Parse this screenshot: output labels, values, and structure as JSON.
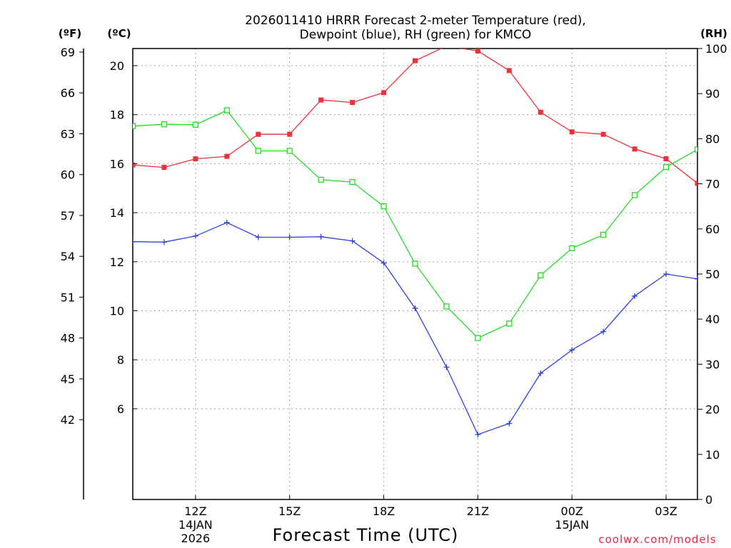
{
  "chart_data": {
    "type": "line",
    "title_line1": "2026011410 HRRR Forecast 2-meter Temperature (red),",
    "title_line2": "Dewpoint (blue), RH (green) for KMCO",
    "xlabel": "Forecast Time (UTC)",
    "credit": "coolwx.com/models",
    "units": {
      "fahrenheit": "(ºF)",
      "celsius": "(ºC)",
      "rh": "(RH)"
    },
    "x_hours": [
      10,
      11,
      12,
      13,
      14,
      15,
      16,
      17,
      18,
      19,
      20,
      21,
      22,
      23,
      24,
      25,
      26,
      27,
      28
    ],
    "xlim": [
      10,
      28
    ],
    "x_ticks": [
      {
        "hour": 12,
        "label": "12Z",
        "sub1": "14JAN",
        "sub2": "2026"
      },
      {
        "hour": 15,
        "label": "15Z",
        "sub1": "",
        "sub2": ""
      },
      {
        "hour": 18,
        "label": "18Z",
        "sub1": "",
        "sub2": ""
      },
      {
        "hour": 21,
        "label": "21Z",
        "sub1": "",
        "sub2": ""
      },
      {
        "hour": 24,
        "label": "00Z",
        "sub1": "15JAN",
        "sub2": ""
      },
      {
        "hour": 27,
        "label": "03Z",
        "sub1": "",
        "sub2": ""
      }
    ],
    "celsius_axis": {
      "range": [
        2.3,
        20.7
      ],
      "ticks": [
        "6",
        "8",
        "10",
        "12",
        "14",
        "16",
        "18",
        "20"
      ]
    },
    "fahrenheit_axis": {
      "ticks": [
        "42",
        "45",
        "48",
        "51",
        "54",
        "57",
        "60",
        "63",
        "66",
        "69"
      ]
    },
    "rh_axis": {
      "range": [
        0,
        100
      ],
      "ticks": [
        "0",
        "10",
        "20",
        "30",
        "40",
        "50",
        "60",
        "70",
        "80",
        "90",
        "100"
      ]
    },
    "series": [
      {
        "name": "Temperature",
        "color": "#e8333c",
        "axis": "celsius",
        "marker": "filled-square",
        "values": [
          15.95,
          15.85,
          16.2,
          16.3,
          17.2,
          17.2,
          18.6,
          18.5,
          18.9,
          20.2,
          20.8,
          20.6,
          19.8,
          18.1,
          17.3,
          17.2,
          16.6,
          16.2,
          15.2
        ]
      },
      {
        "name": "Dewpoint",
        "color": "#2c3fe0",
        "axis": "celsius",
        "marker": "plus",
        "values": [
          12.82,
          12.8,
          13.05,
          13.6,
          13.0,
          13.0,
          13.02,
          12.85,
          11.95,
          10.1,
          7.7,
          4.95,
          5.4,
          7.45,
          8.4,
          9.15,
          10.6,
          11.5,
          11.3
        ]
      },
      {
        "name": "RH",
        "color": "#22dd22",
        "axis": "rh",
        "marker": "open-square",
        "values": [
          82.8,
          83.2,
          83.1,
          86.3,
          77.3,
          77.3,
          70.9,
          70.4,
          65.0,
          52.3,
          42.8,
          35.8,
          39.0,
          49.7,
          55.7,
          58.7,
          67.5,
          73.7,
          77.6
        ]
      }
    ]
  }
}
